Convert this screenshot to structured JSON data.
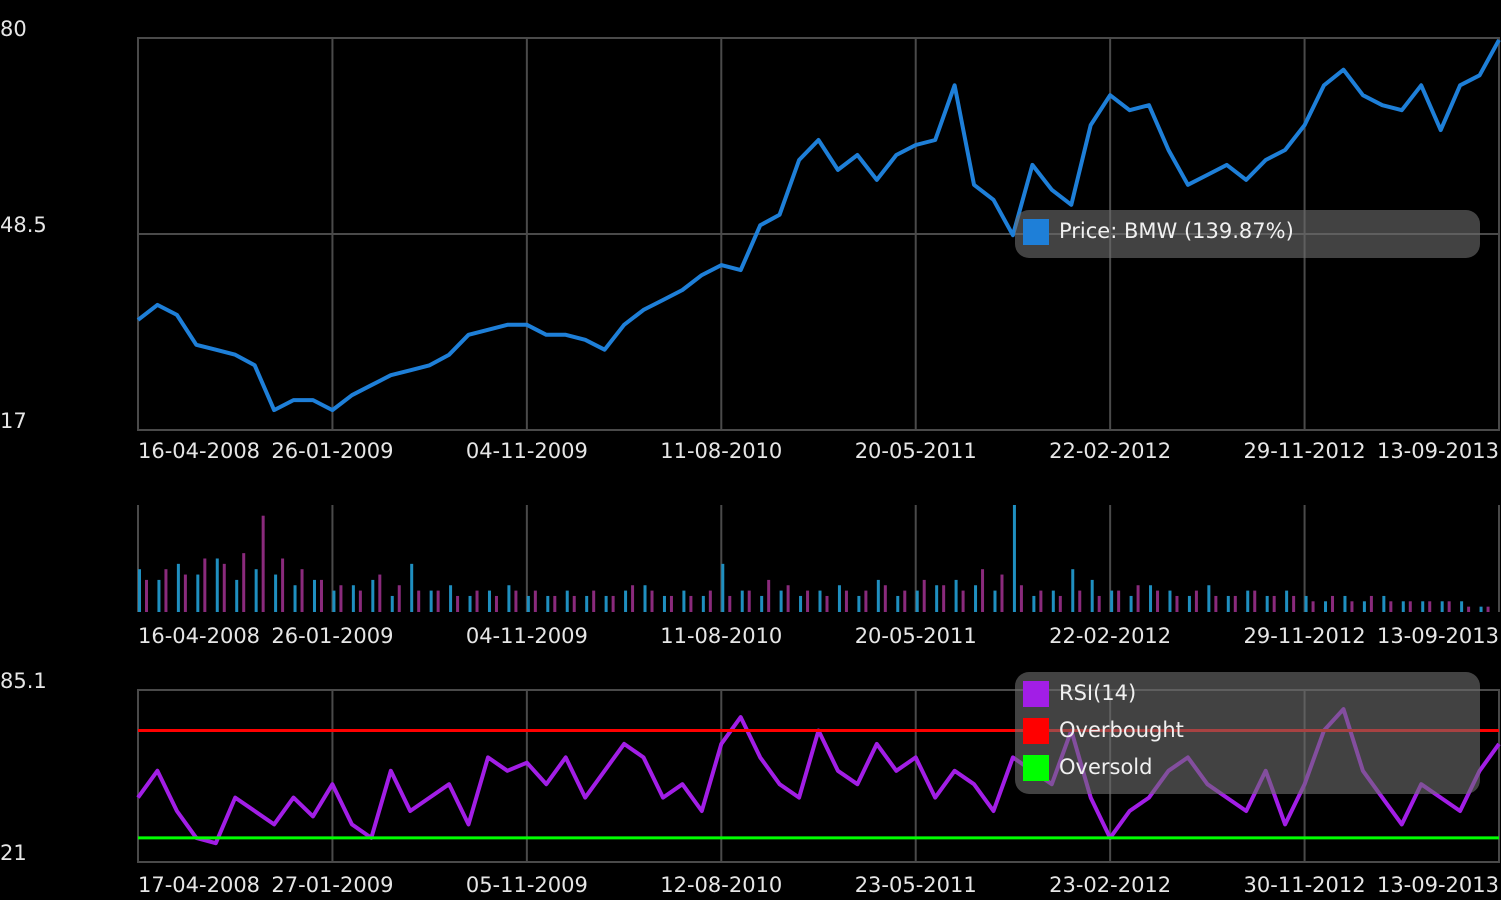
{
  "chart_data": [
    {
      "type": "line",
      "legend": "right",
      "series": [
        {
          "name": "Price: BMW (139.87%)",
          "color": "#1e7fd8",
          "values": [
            34.7,
            37.1,
            35.5,
            30.7,
            29.9,
            29.1,
            27.4,
            20.2,
            21.8,
            21.8,
            20.2,
            22.6,
            24.2,
            25.8,
            26.6,
            27.4,
            29.1,
            32.3,
            33.1,
            33.9,
            33.9,
            32.3,
            32.3,
            31.5,
            29.9,
            33.9,
            36.3,
            37.9,
            39.5,
            41.9,
            43.5,
            42.7,
            49.9,
            51.6,
            60.4,
            63.6,
            58.8,
            61.2,
            57.2,
            61.2,
            62.8,
            63.6,
            72.4,
            56.4,
            54.0,
            48.3,
            59.6,
            55.6,
            53.2,
            66.0,
            70.8,
            68.4,
            69.2,
            62.0,
            56.4,
            58.0,
            59.6,
            57.2,
            60.4,
            62.0,
            66.0,
            72.4,
            74.9,
            70.8,
            69.2,
            68.4,
            72.4,
            65.2,
            72.4,
            74.0,
            79.7
          ]
        }
      ],
      "xlim": [
        0,
        70
      ],
      "xticks": [
        {
          "value": 0,
          "label": "16-04-2008"
        },
        {
          "value": 10,
          "label": "26-01-2009"
        },
        {
          "value": 20,
          "label": "04-11-2009"
        },
        {
          "value": 30,
          "label": "11-08-2010"
        },
        {
          "value": 40,
          "label": "20-05-2011"
        },
        {
          "value": 50,
          "label": "22-02-2012"
        },
        {
          "value": 60,
          "label": "29-11-2012"
        },
        {
          "value": 70,
          "label": "13-09-2013"
        }
      ],
      "ylim": [
        17,
        80
      ],
      "yticks": [
        17,
        48.5,
        80
      ],
      "grid": true
    },
    {
      "type": "bar",
      "series": [
        {
          "color": "#1f8fc0",
          "values": [
            40,
            30,
            45,
            35,
            50,
            30,
            40,
            35,
            25,
            30,
            20,
            25,
            30,
            15,
            45,
            20,
            25,
            15,
            20,
            25,
            15,
            15,
            20,
            15,
            15,
            20,
            25,
            15,
            20,
            15,
            45,
            20,
            15,
            20,
            15,
            20,
            25,
            15,
            30,
            15,
            20,
            25,
            30,
            25,
            20,
            100,
            15,
            20,
            40,
            30,
            20,
            15,
            25,
            20,
            15,
            25,
            15,
            20,
            15,
            20,
            15,
            10,
            15,
            10,
            15,
            10,
            10,
            10,
            10,
            5
          ]
        },
        {
          "color": "#8a2a7c",
          "values": [
            30,
            40,
            35,
            50,
            45,
            55,
            90,
            50,
            40,
            30,
            25,
            20,
            35,
            25,
            20,
            20,
            15,
            20,
            15,
            20,
            20,
            15,
            15,
            20,
            15,
            25,
            20,
            15,
            15,
            20,
            15,
            20,
            30,
            25,
            20,
            15,
            20,
            20,
            25,
            20,
            30,
            25,
            20,
            40,
            35,
            25,
            20,
            15,
            20,
            15,
            20,
            25,
            20,
            15,
            20,
            15,
            15,
            20,
            15,
            15,
            10,
            15,
            10,
            15,
            10,
            10,
            10,
            10,
            5,
            5
          ]
        }
      ],
      "xlim": [
        0,
        70
      ],
      "xticks": [
        {
          "value": 0,
          "label": "16-04-2008"
        },
        {
          "value": 10,
          "label": "26-01-2009"
        },
        {
          "value": 20,
          "label": "04-11-2009"
        },
        {
          "value": 30,
          "label": "11-08-2010"
        },
        {
          "value": 40,
          "label": "20-05-2011"
        },
        {
          "value": 50,
          "label": "22-02-2012"
        },
        {
          "value": 60,
          "label": "29-11-2012"
        },
        {
          "value": 70,
          "label": "13-09-2013"
        }
      ],
      "ylim": [
        0,
        100
      ],
      "grid": true
    },
    {
      "type": "line",
      "legend": "right",
      "series": [
        {
          "name": "RSI(14)",
          "color": "#a21ee6",
          "values": [
            45,
            55,
            40,
            30,
            28,
            45,
            40,
            35,
            45,
            38,
            50,
            35,
            30,
            55,
            40,
            45,
            50,
            35,
            60,
            55,
            58,
            50,
            60,
            45,
            55,
            65,
            60,
            45,
            50,
            40,
            65,
            75,
            60,
            50,
            45,
            70,
            55,
            50,
            65,
            55,
            60,
            45,
            55,
            50,
            40,
            60,
            55,
            50,
            70,
            45,
            30,
            40,
            45,
            55,
            60,
            50,
            45,
            40,
            55,
            35,
            50,
            70,
            78,
            55,
            45,
            35,
            50,
            45,
            40,
            55,
            65
          ]
        },
        {
          "name": "Overbought",
          "color": "#ff0000",
          "level": 70
        },
        {
          "name": "Oversold",
          "color": "#00ff00",
          "level": 30
        }
      ],
      "xlim": [
        0,
        70
      ],
      "xticks": [
        {
          "value": 0,
          "label": "17-04-2008"
        },
        {
          "value": 10,
          "label": "27-01-2009"
        },
        {
          "value": 20,
          "label": "05-11-2009"
        },
        {
          "value": 30,
          "label": "12-08-2010"
        },
        {
          "value": 40,
          "label": "23-05-2011"
        },
        {
          "value": 50,
          "label": "23-02-2012"
        },
        {
          "value": 60,
          "label": "30-11-2012"
        },
        {
          "value": 70,
          "label": "13-09-2013"
        }
      ],
      "ylim": [
        21,
        85.1
      ],
      "yticks": [
        21,
        85.1
      ],
      "grid": true
    }
  ]
}
